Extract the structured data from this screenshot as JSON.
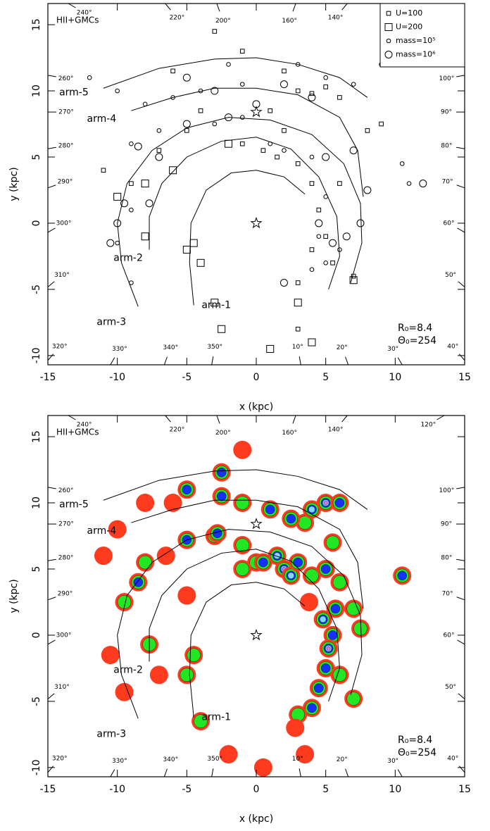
{
  "chart_data": [
    {
      "type": "scatter",
      "title": "HII+GMCs",
      "x_label": "x (kpc)",
      "y_label": "y (kpc)",
      "annotations": [
        "R₀=8.4",
        "Θ₀=254"
      ],
      "xlim": [
        -15,
        15
      ],
      "ylim": [
        -10.7,
        16.6
      ],
      "xticks": [
        -15,
        -10,
        -5,
        0,
        5,
        10,
        15
      ],
      "yticks": [
        -10,
        -5,
        0,
        5,
        10,
        15
      ],
      "stars": {
        "x": [
          0,
          0
        ],
        "y": [
          0,
          8.4
        ]
      },
      "longitudes": [
        {
          "value": 240,
          "label": "240°"
        },
        {
          "value": 220,
          "label": "220°"
        },
        {
          "value": 200,
          "label": "200°"
        },
        {
          "value": 160,
          "label": "160°"
        },
        {
          "value": 140,
          "label": "140°"
        },
        {
          "value": 120,
          "label": "120°"
        },
        {
          "value": 100,
          "label": "100°"
        },
        {
          "value": 90,
          "label": "90°"
        },
        {
          "value": 80,
          "label": "80°"
        },
        {
          "value": 70,
          "label": "70°"
        },
        {
          "value": 60,
          "label": "60°"
        },
        {
          "value": 50,
          "label": "50°"
        },
        {
          "value": 40,
          "label": "40°"
        },
        {
          "value": 30,
          "label": "30°"
        },
        {
          "value": 20,
          "label": "20°"
        },
        {
          "value": 10,
          "label": "10°"
        },
        {
          "value": 350,
          "label": "350°"
        },
        {
          "value": 340,
          "label": "340°"
        },
        {
          "value": 330,
          "label": "330°"
        },
        {
          "value": 320,
          "label": "320°"
        },
        {
          "value": 310,
          "label": "310°"
        },
        {
          "value": 300,
          "label": "300°"
        },
        {
          "value": 290,
          "label": "290°"
        },
        {
          "value": 280,
          "label": "280°"
        },
        {
          "value": 270,
          "label": "270°"
        },
        {
          "value": 260,
          "label": "260°"
        }
      ],
      "arms": [
        {
          "name": "arm-1",
          "x": [
            -4.5,
            -4.8,
            -4.7,
            -3.6,
            -1.8,
            0,
            2,
            3.5
          ],
          "y": [
            -6.2,
            -3,
            0,
            2.5,
            3.8,
            4,
            3.5,
            2.2
          ]
        },
        {
          "name": "arm-2",
          "x": [
            -7.7,
            -7.7,
            -6.8,
            -5,
            -2.5,
            0,
            2.5,
            4.5,
            5.8,
            6,
            5.2
          ],
          "y": [
            -2,
            0.5,
            3,
            5,
            6.2,
            6.5,
            5.6,
            3.5,
            0.5,
            -2.5,
            -5
          ]
        },
        {
          "name": "arm-3",
          "x": [
            -8.5,
            -9.7,
            -10,
            -9.3,
            -7.5,
            -5,
            -2,
            1,
            4,
            6.3,
            7.5,
            7.6,
            6.8
          ],
          "y": [
            -6.3,
            -3,
            0,
            3,
            5.5,
            7.2,
            8,
            7.8,
            6.7,
            4.5,
            1.5,
            -1.5,
            -4.5
          ]
        },
        {
          "name": "arm-4",
          "x": [
            -9,
            -6,
            -3,
            0,
            3,
            6,
            7.3,
            7.7
          ],
          "y": [
            8.5,
            9.5,
            10.2,
            10.2,
            9.7,
            8,
            5.5,
            2
          ]
        },
        {
          "name": "arm-5",
          "x": [
            -11,
            -7,
            -3,
            0,
            3,
            6,
            8
          ],
          "y": [
            10.2,
            11.7,
            12.4,
            12.5,
            12,
            11,
            9.5
          ]
        }
      ],
      "series": [
        {
          "name": "U=100",
          "marker": "square",
          "marker_size": "small",
          "x": [
            -3,
            -1,
            2,
            3,
            4,
            5,
            6,
            -6,
            1,
            2,
            -1,
            0.5,
            1.5,
            3,
            4,
            4.5,
            5,
            4,
            5.5,
            3,
            -5,
            -7,
            -9,
            -11,
            8,
            9,
            -4,
            6,
            7,
            3
          ],
          "y": [
            14.5,
            13,
            11.5,
            10,
            9.8,
            10.3,
            9.5,
            11.5,
            8.5,
            7,
            6,
            5.5,
            5,
            4.5,
            3,
            1,
            -1,
            -2,
            -3,
            -4.5,
            7,
            5.5,
            3,
            4,
            7,
            7.5,
            8.5,
            3,
            -4,
            -8
          ]
        },
        {
          "name": "U=200",
          "marker": "square",
          "marker_size": "large",
          "x": [
            -8,
            -5,
            -4,
            -3,
            -2.5,
            3,
            7,
            1,
            -6,
            -8,
            -2,
            4,
            -10,
            -4.5
          ],
          "y": [
            -1,
            -2,
            -3,
            -6,
            -8,
            -6,
            -4.3,
            -9.5,
            4,
            3,
            6,
            -9,
            2,
            -1.5
          ]
        },
        {
          "name": "mass=10⁵",
          "marker": "circle",
          "marker_size": "small",
          "x": [
            -12,
            -10,
            -8,
            -6,
            -4,
            -2,
            -1,
            3,
            5,
            7,
            9,
            -9,
            -7,
            -3,
            -1,
            1,
            2,
            4,
            5,
            4.5,
            5,
            -10,
            -9,
            10.5,
            11,
            -9,
            4,
            6
          ],
          "y": [
            11,
            10,
            9,
            9.5,
            10,
            12,
            10.5,
            12,
            11,
            10.5,
            12,
            6,
            7,
            7.5,
            8,
            6,
            5.5,
            5,
            2,
            -1,
            -3,
            -1.5,
            -4.5,
            4.5,
            3,
            1,
            -3.5,
            -2
          ]
        },
        {
          "name": "mass=10⁶",
          "marker": "circle",
          "marker_size": "large",
          "x": [
            -10.5,
            -10,
            -8.5,
            -7,
            -5,
            -2,
            -3,
            -5,
            0,
            2,
            4,
            5,
            7,
            4.5,
            5.5,
            2,
            6.5,
            12,
            7.5,
            -9.5,
            8,
            -7.7
          ],
          "y": [
            -1.5,
            0,
            5.8,
            5,
            7.5,
            8,
            10,
            11,
            9,
            10.5,
            9.5,
            5,
            5.5,
            0,
            -1.5,
            -4.5,
            -1,
            3,
            0,
            1.5,
            2.5,
            1.5
          ]
        }
      ]
    },
    {
      "type": "contour",
      "title": "HII+GMCs",
      "x_label": "x (kpc)",
      "y_label": "y (kpc)",
      "annotations": [
        "R₀=8.4",
        "Θ₀=254"
      ],
      "xlim": [
        -15,
        15
      ],
      "ylim": [
        -10.7,
        16.6
      ],
      "xticks": [
        -15,
        -10,
        -5,
        0,
        5,
        10,
        15
      ],
      "yticks": [
        -10,
        -5,
        0,
        5,
        10,
        15
      ],
      "stars": {
        "x": [
          0,
          0
        ],
        "y": [
          0,
          8.4
        ]
      },
      "longitudes": [
        {
          "value": 240,
          "label": "240°"
        },
        {
          "value": 220,
          "label": "220°"
        },
        {
          "value": 200,
          "label": "200°"
        },
        {
          "value": 160,
          "label": "160°"
        },
        {
          "value": 140,
          "label": "140°"
        },
        {
          "value": 120,
          "label": "120°"
        },
        {
          "value": 100,
          "label": "100°"
        },
        {
          "value": 90,
          "label": "90°"
        },
        {
          "value": 80,
          "label": "80°"
        },
        {
          "value": 70,
          "label": "70°"
        },
        {
          "value": 60,
          "label": "60°"
        },
        {
          "value": 50,
          "label": "50°"
        },
        {
          "value": 40,
          "label": "40°"
        },
        {
          "value": 30,
          "label": "30°"
        },
        {
          "value": 20,
          "label": "20°"
        },
        {
          "value": 10,
          "label": "10°"
        },
        {
          "value": 350,
          "label": "350°"
        },
        {
          "value": 340,
          "label": "340°"
        },
        {
          "value": 330,
          "label": "330°"
        },
        {
          "value": 320,
          "label": "320°"
        },
        {
          "value": 310,
          "label": "310°"
        },
        {
          "value": 300,
          "label": "300°"
        },
        {
          "value": 290,
          "label": "290°"
        },
        {
          "value": 280,
          "label": "280°"
        },
        {
          "value": 270,
          "label": "270°"
        },
        {
          "value": 260,
          "label": "260°"
        }
      ],
      "arms": [
        {
          "name": "arm-1",
          "x": [
            -4.5,
            -4.8,
            -4.7,
            -3.6,
            -1.8,
            0,
            2,
            3.5
          ],
          "y": [
            -6.2,
            -3,
            0,
            2.5,
            3.8,
            4,
            3.5,
            2.2
          ]
        },
        {
          "name": "arm-2",
          "x": [
            -7.7,
            -7.7,
            -6.8,
            -5,
            -2.5,
            0,
            2.5,
            4.5,
            5.8,
            6,
            5.2
          ],
          "y": [
            -2,
            0.5,
            3,
            5,
            6.2,
            6.5,
            5.6,
            3.5,
            0.5,
            -2.5,
            -5
          ]
        },
        {
          "name": "arm-3",
          "x": [
            -8.5,
            -9.7,
            -10,
            -9.3,
            -7.5,
            -5,
            -2,
            1,
            4,
            6.3,
            7.5,
            7.6,
            6.8
          ],
          "y": [
            -6.3,
            -3,
            0,
            3,
            5.5,
            7.2,
            8,
            7.8,
            6.7,
            4.5,
            1.5,
            -1.5,
            -4.5
          ]
        },
        {
          "name": "arm-4",
          "x": [
            -9,
            -6,
            -3,
            0,
            3,
            6,
            7.3,
            7.7
          ],
          "y": [
            8.5,
            9.5,
            10.2,
            10.2,
            9.7,
            8,
            5.5,
            2
          ]
        },
        {
          "name": "arm-5",
          "x": [
            -11,
            -7,
            -3,
            0,
            3,
            6,
            8
          ],
          "y": [
            10.2,
            11.7,
            12.4,
            12.5,
            12,
            11,
            9.5
          ]
        }
      ],
      "level_colors": [
        "#ff3b1f",
        "#22e622",
        "#1530ff",
        "#80d8ff",
        "#ff66ff"
      ],
      "blobs": {
        "x": [
          -9.5,
          -8.5,
          -8,
          -6.5,
          -5,
          -3,
          -2.8,
          -1,
          0,
          0.5,
          1.5,
          2,
          2.5,
          3,
          4,
          5,
          6,
          5.5,
          3.5,
          2.5,
          4,
          5,
          6,
          1,
          -1,
          -2.5,
          -5,
          -6,
          -2.5,
          -1,
          -8,
          -10,
          5.5,
          5.2,
          4.8,
          5,
          4.5,
          6,
          5.7,
          7,
          4,
          3,
          7.5,
          10.5,
          7,
          -4.5,
          -5,
          -7.7,
          -10.5,
          -9.5,
          -4,
          -2,
          0.5,
          3.5,
          -5,
          -11,
          2.8,
          -1,
          3.8,
          -7
        ],
        "y": [
          2.5,
          4,
          5.5,
          6,
          7.2,
          7.5,
          7.7,
          6.8,
          5.5,
          5.5,
          6,
          5,
          4.5,
          5.5,
          4.5,
          5,
          4,
          7,
          8.5,
          8.8,
          9.5,
          10,
          10,
          9.5,
          10,
          10.5,
          11,
          10,
          12.3,
          14,
          10,
          8,
          0,
          -1,
          1.2,
          -2.5,
          -4,
          -3,
          2,
          -4.8,
          -5.5,
          -6,
          0.5,
          4.5,
          2,
          -1.5,
          -3,
          -0.7,
          -1.5,
          -4.3,
          -6.5,
          -9,
          -10,
          -9,
          3,
          6,
          -7,
          5,
          2.5,
          -3
        ],
        "level": [
          2,
          3,
          2,
          1,
          3,
          2,
          3,
          2,
          2,
          3,
          4,
          5,
          4,
          3,
          2,
          3,
          2,
          2,
          2,
          3,
          4,
          5,
          3,
          3,
          2,
          3,
          3,
          1,
          3,
          1,
          1,
          1,
          3,
          5,
          4,
          3,
          3,
          2,
          3,
          2,
          3,
          2,
          2,
          3,
          2,
          2,
          2,
          2,
          1,
          1,
          2,
          1,
          1,
          1,
          1,
          1,
          1,
          2,
          1,
          1
        ]
      }
    }
  ]
}
